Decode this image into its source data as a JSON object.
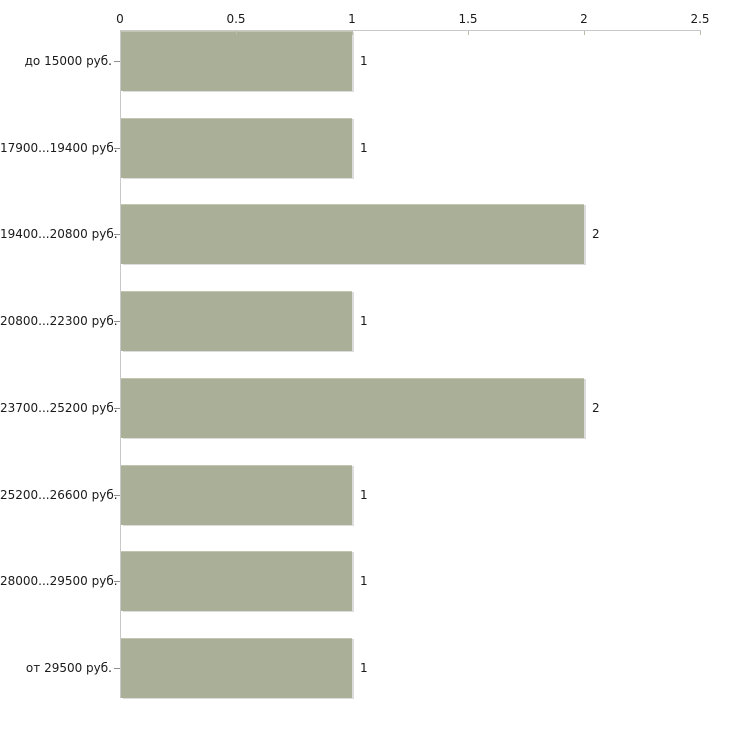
{
  "chart_data": {
    "type": "bar",
    "orientation": "horizontal",
    "title": "",
    "categories": [
      "до 15000 руб.",
      "17900...19400 руб.",
      "19400...20800 руб.",
      "20800...22300 руб.",
      "23700...25200 руб.",
      "25200...26600 руб.",
      "28000...29500 руб.",
      "от 29500 руб."
    ],
    "values": [
      1,
      1,
      2,
      1,
      2,
      1,
      1,
      1
    ],
    "value_labels": [
      "1",
      "1",
      "2",
      "1",
      "2",
      "1",
      "1",
      "1"
    ],
    "xlabel": "",
    "ylabel": "",
    "xlim": [
      0,
      2.5
    ],
    "xticks": [
      0,
      0.5,
      1,
      1.5,
      2,
      2.5
    ],
    "xtick_labels": [
      "0",
      "0.5",
      "1",
      "1.5",
      "2",
      "2.5"
    ],
    "grid": false,
    "legend": false,
    "axis_position": "top-left",
    "bar_color": "#aab097",
    "bar_highlight_color": "#c2c6b0",
    "bar_shadow_color": "#dcdcdc",
    "axis_line_color": "#c9c9c9",
    "tick_color": "#b9bda3",
    "text_color": "#1a1a1a",
    "background_color": "#ffffff"
  }
}
